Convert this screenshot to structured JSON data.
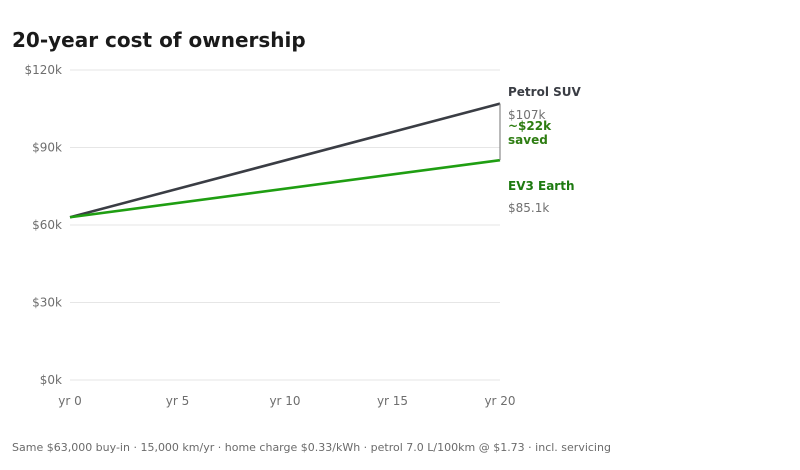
{
  "title": "20-year cost of ownership",
  "footnote": "Same $63,000 buy-in · 15,000 km/yr · home charge $0.33/kWh · petrol 7.0 L/100km @ $1.73 · incl. servicing",
  "chart_data": {
    "type": "line",
    "title": "20-year cost of ownership",
    "x": [
      0,
      20
    ],
    "xticks": [
      0,
      5,
      10,
      15,
      20
    ],
    "xtick_labels": [
      "yr 0",
      "yr 5",
      "yr 10",
      "yr 15",
      "yr 20"
    ],
    "ylim": [
      0,
      120000
    ],
    "yticks": [
      0,
      30000,
      60000,
      90000,
      120000
    ],
    "ytick_labels": [
      "$0k",
      "$30k",
      "$60k",
      "$90k",
      "$120k"
    ],
    "grid": true,
    "series": [
      {
        "name": "Petrol SUV",
        "color": "#3a3d44",
        "values": [
          63000,
          107000
        ],
        "end_label": "$107k"
      },
      {
        "name": "EV3 Earth",
        "color": "#1f9e12",
        "label_color": "#1d7a10",
        "values": [
          63000,
          85100
        ],
        "end_label": "$85.1k"
      }
    ],
    "annotations": [
      {
        "text_line1": "~$22k",
        "text_line2": "saved",
        "between": [
          "Petrol SUV",
          "EV3 Earth"
        ],
        "x": 20
      }
    ]
  }
}
